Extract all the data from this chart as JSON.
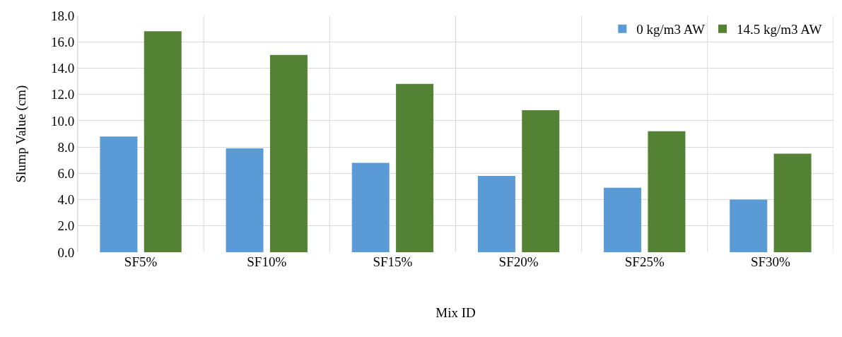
{
  "chart_data": {
    "type": "bar",
    "xlabel": "Mix ID",
    "ylabel": "Slump Value (cm)",
    "categories": [
      "SF5%",
      "SF10%",
      "SF15%",
      "SF20%",
      "SF25%",
      "SF30%"
    ],
    "series": [
      {
        "name": "0 kg/m3 AW",
        "color": "#5b9bd5",
        "values": [
          8.8,
          7.9,
          6.8,
          5.8,
          4.9,
          4.0
        ]
      },
      {
        "name": "14.5 kg/m3 AW",
        "color": "#548235",
        "values": [
          16.8,
          15.0,
          12.8,
          10.8,
          9.2,
          7.5
        ]
      }
    ],
    "ylim": [
      0,
      18
    ],
    "yticks": [
      {
        "value": 0,
        "label": "0.0"
      },
      {
        "value": 2,
        "label": "2.0"
      },
      {
        "value": 4,
        "label": "4.0"
      },
      {
        "value": 6,
        "label": "6.0"
      },
      {
        "value": 8,
        "label": "8.0"
      },
      {
        "value": 10,
        "label": "10.0"
      },
      {
        "value": 12,
        "label": "12.0"
      },
      {
        "value": 14,
        "label": "14.0"
      },
      {
        "value": 16,
        "label": "16.0"
      },
      {
        "value": 18,
        "label": "18.0"
      }
    ],
    "grid": true,
    "legend": "top right"
  }
}
